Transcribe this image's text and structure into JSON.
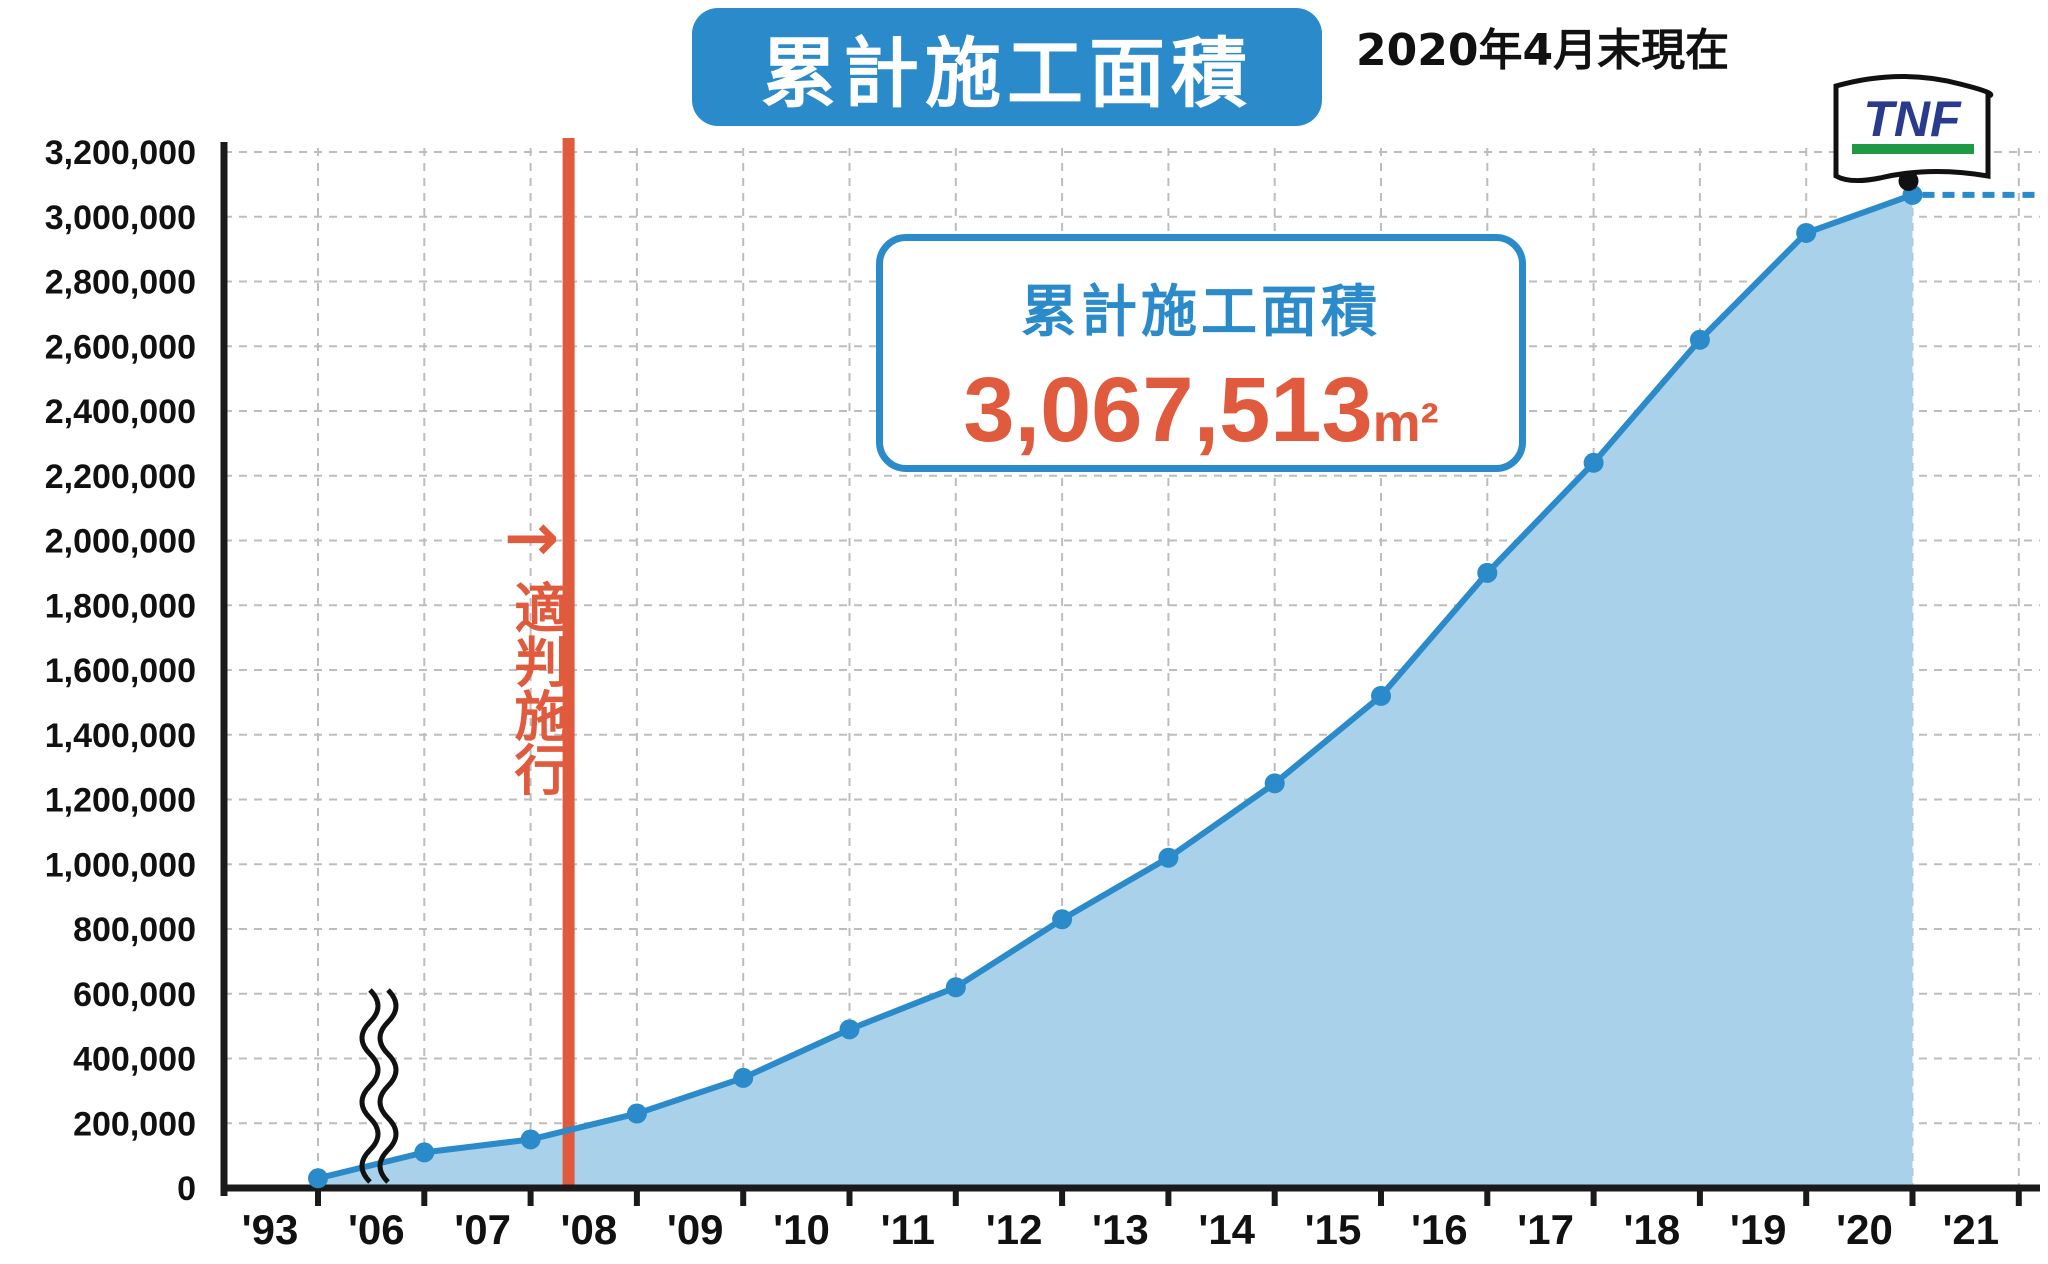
{
  "header": {
    "title": "累計施工面積",
    "as_of": "2020年4月末現在"
  },
  "callout": {
    "label": "累計施工面積",
    "value": "3,067,513",
    "unit": "m²"
  },
  "event": {
    "label": "適判施行",
    "arrow": "→",
    "category": "'07"
  },
  "logo": {
    "text": "TNF"
  },
  "colors": {
    "series": "#2b8ac9",
    "fill": "#a9d1ea",
    "event": "#e05a3e",
    "logo_text": "#2a3a8c",
    "logo_stripe": "#1e9a45"
  },
  "chart_data": {
    "type": "area",
    "title": "累計施工面積",
    "subtitle": "2020年4月末現在",
    "categories": [
      "'93",
      "'06",
      "'07",
      "'08",
      "'09",
      "'10",
      "'11",
      "'12",
      "'13",
      "'14",
      "'15",
      "'16",
      "'17",
      "'18",
      "'19",
      "'20",
      "'21"
    ],
    "series": [
      {
        "name": "",
        "points": [
          {
            "x": "'93",
            "y": 30000
          },
          {
            "x": "'06",
            "y": 110000
          },
          {
            "x": "'07",
            "y": 150000
          },
          {
            "x": "'08",
            "y": 230000
          },
          {
            "x": "'09",
            "y": 340000
          },
          {
            "x": "'10",
            "y": 490000
          },
          {
            "x": "'11",
            "y": 620000
          },
          {
            "x": "'12",
            "y": 830000
          },
          {
            "x": "'13",
            "y": 1020000
          },
          {
            "x": "'14",
            "y": 1250000
          },
          {
            "x": "'15",
            "y": 1520000
          },
          {
            "x": "'16",
            "y": 1900000
          },
          {
            "x": "'17",
            "y": 2240000
          },
          {
            "x": "'18",
            "y": 2620000
          },
          {
            "x": "'19",
            "y": 2950000
          },
          {
            "x": "'20",
            "y": 3067513
          }
        ]
      }
    ],
    "y_ticks": [
      "0",
      "200,000",
      "400,000",
      "600,000",
      "800,000",
      "1,000,000",
      "1,200,000",
      "1,400,000",
      "1,600,000",
      "1,800,000",
      "2,000,000",
      "2,200,000",
      "2,400,000",
      "2,600,000",
      "2,800,000",
      "3,000,000",
      "3,200,000"
    ],
    "ylim": [
      0,
      3200000
    ],
    "axis_break": "between '93 and '06",
    "grid": true,
    "reference_line": {
      "y": 3067513,
      "style": "dashed",
      "extends": "to right edge"
    },
    "xlabel": "",
    "ylabel": ""
  }
}
